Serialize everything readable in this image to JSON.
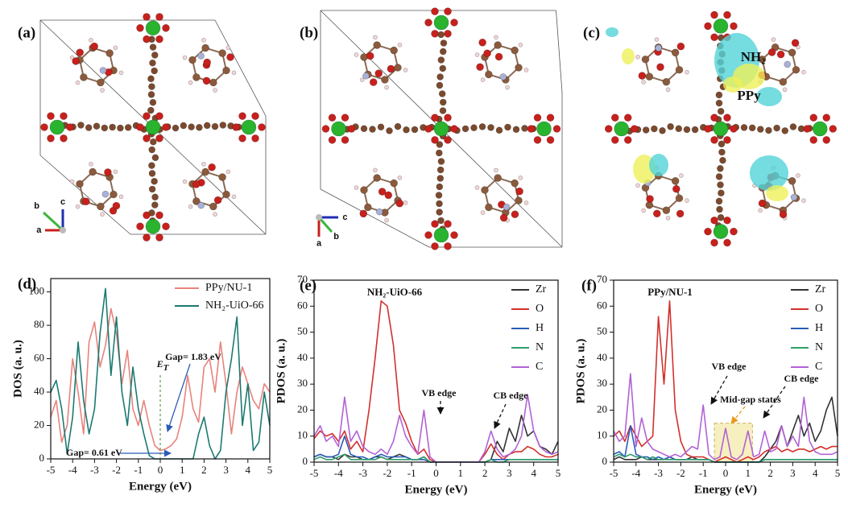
{
  "structures": [
    {
      "label": "(a)",
      "axes": [
        "a",
        "b",
        "c"
      ]
    },
    {
      "label": "(b)",
      "axes": [
        "a",
        "b",
        "c"
      ]
    },
    {
      "label": "(c)",
      "annotations": [
        "NH₂",
        "PPy"
      ]
    }
  ],
  "chart_data": [
    {
      "type": "line",
      "label": "(d)",
      "x_label": "Energy (eV)",
      "y_label": "DOS (a. u.)",
      "xlim": [
        -5,
        5
      ],
      "xticks": [
        -5,
        -4,
        -3,
        -2,
        -1,
        0,
        1,
        2,
        3,
        4,
        5
      ],
      "ylim": [
        0,
        108
      ],
      "yticks": [
        0,
        20,
        40,
        60,
        80,
        100
      ],
      "legend": "top-right",
      "annotations": [
        {
          "text": "E",
          "sub": "T"
        },
        {
          "text": "Gap= 1.83 eV"
        },
        {
          "text": "Gap= 0.61 eV"
        }
      ],
      "x": [
        -5,
        -4.75,
        -4.5,
        -4.25,
        -4,
        -3.75,
        -3.5,
        -3.25,
        -3,
        -2.75,
        -2.5,
        -2.25,
        -2,
        -1.75,
        -1.5,
        -1.25,
        -1,
        -0.75,
        -0.5,
        -0.25,
        0,
        0.25,
        0.5,
        0.75,
        1,
        1.25,
        1.5,
        1.75,
        2,
        2.25,
        2.5,
        2.75,
        3,
        3.25,
        3.5,
        3.75,
        4,
        4.25,
        4.5,
        4.75,
        5
      ],
      "series": [
        {
          "name": "PPy/NU-1",
          "color": "#e8837c",
          "values": [
            25,
            35,
            10,
            20,
            60,
            40,
            15,
            70,
            82,
            55,
            68,
            90,
            75,
            45,
            65,
            30,
            20,
            35,
            20,
            8,
            5,
            6,
            8,
            12,
            25,
            50,
            30,
            22,
            55,
            60,
            40,
            70,
            45,
            15,
            40,
            55,
            45,
            35,
            30,
            45,
            40
          ]
        },
        {
          "name": "NH₂-UiO-66",
          "color": "#1b7a72",
          "values": [
            40,
            47,
            30,
            3,
            25,
            70,
            35,
            15,
            30,
            75,
            102,
            50,
            85,
            40,
            20,
            55,
            30,
            15,
            2,
            0,
            0,
            0,
            0,
            0,
            0,
            0,
            0,
            15,
            25,
            8,
            0,
            5,
            40,
            60,
            85,
            20,
            45,
            5,
            10,
            40,
            20
          ]
        }
      ]
    },
    {
      "type": "line",
      "label": "(e)",
      "title": "NH₂-UiO-66",
      "x_label": "Energy (eV)",
      "y_label": "PDOS (a. u.)",
      "xlim": [
        -5,
        5
      ],
      "xticks": [
        -5,
        -4,
        -3,
        -2,
        -1,
        0,
        1,
        2,
        3,
        4,
        5
      ],
      "ylim": [
        0,
        70
      ],
      "yticks": [
        0,
        10,
        20,
        30,
        40,
        50,
        60,
        70
      ],
      "legend": "top-right",
      "annotations": [
        {
          "text": "VB edge"
        },
        {
          "text": "CB edge"
        }
      ],
      "x": [
        -5,
        -4.75,
        -4.5,
        -4.25,
        -4,
        -3.75,
        -3.5,
        -3.25,
        -3,
        -2.75,
        -2.5,
        -2.25,
        -2,
        -1.75,
        -1.5,
        -1.25,
        -1,
        -0.75,
        -0.5,
        -0.25,
        0,
        0.25,
        0.5,
        0.75,
        1,
        1.25,
        1.5,
        1.75,
        2,
        2.25,
        2.5,
        2.75,
        3,
        3.25,
        3.5,
        3.75,
        4,
        4.25,
        4.5,
        4.75,
        5
      ],
      "series": [
        {
          "name": "Zr",
          "color": "#333333",
          "values": [
            2,
            3,
            2,
            2,
            1,
            3,
            2,
            2,
            1,
            1,
            2,
            2,
            1,
            2,
            3,
            2,
            1,
            1,
            2,
            0,
            0,
            0,
            0,
            0,
            0,
            0,
            0,
            0,
            0,
            1,
            8,
            4,
            13,
            8,
            18,
            10,
            12,
            6,
            5,
            3,
            8
          ]
        },
        {
          "name": "O",
          "color": "#d2302c",
          "values": [
            9,
            12,
            10,
            11,
            8,
            12,
            5,
            8,
            4,
            20,
            40,
            62,
            60,
            45,
            20,
            15,
            8,
            3,
            5,
            1,
            0,
            0,
            0,
            0,
            0,
            0,
            0,
            0,
            3,
            7,
            3,
            1,
            3,
            4,
            4,
            6,
            5,
            3,
            2,
            2,
            3
          ]
        },
        {
          "name": "H",
          "color": "#2a5cb8",
          "values": [
            2,
            3,
            2,
            2,
            3,
            10,
            3,
            2,
            2,
            1,
            2,
            3,
            2,
            2,
            2,
            2,
            1,
            1,
            1,
            0,
            0,
            0,
            0,
            0,
            0,
            0,
            0,
            0,
            0,
            1,
            1,
            1,
            1,
            1,
            1,
            1,
            1,
            1,
            1,
            1,
            1
          ]
        },
        {
          "name": "N",
          "color": "#2e9e6a",
          "values": [
            1,
            2,
            1,
            1,
            2,
            3,
            1,
            1,
            1,
            1,
            1,
            2,
            1,
            1,
            1,
            1,
            1,
            1,
            2,
            0,
            0,
            0,
            0,
            0,
            0,
            0,
            0,
            0,
            0,
            1,
            0,
            0,
            1,
            1,
            1,
            1,
            1,
            1,
            1,
            1,
            1
          ]
        },
        {
          "name": "C",
          "color": "#b262d6",
          "values": [
            10,
            14,
            8,
            10,
            6,
            25,
            8,
            12,
            6,
            4,
            3,
            5,
            3,
            8,
            18,
            10,
            6,
            3,
            20,
            2,
            0,
            0,
            0,
            0,
            0,
            0,
            0,
            0,
            4,
            12,
            5,
            2,
            3,
            5,
            10,
            26,
            12,
            6,
            4,
            3,
            4
          ]
        }
      ]
    },
    {
      "type": "line",
      "label": "(f)",
      "title": "PPy/NU-1",
      "x_label": "Energy (eV)",
      "y_label": "PDOS (a. u.)",
      "xlim": [
        -5,
        5
      ],
      "xticks": [
        -5,
        -4,
        -3,
        -2,
        -1,
        0,
        1,
        2,
        3,
        4,
        5
      ],
      "ylim": [
        0,
        70
      ],
      "yticks": [
        0,
        10,
        20,
        30,
        40,
        50,
        60,
        70
      ],
      "legend": "top-right",
      "annotations": [
        {
          "text": "VB edge"
        },
        {
          "text": "CB edge"
        },
        {
          "text": "Mid-gap states"
        }
      ],
      "highlight": {
        "x": [
          -0.5,
          1.2
        ],
        "y": [
          0,
          15
        ],
        "color": "#f6efc0"
      },
      "x": [
        -5,
        -4.75,
        -4.5,
        -4.25,
        -4,
        -3.75,
        -3.5,
        -3.25,
        -3,
        -2.75,
        -2.5,
        -2.25,
        -2,
        -1.75,
        -1.5,
        -1.25,
        -1,
        -0.75,
        -0.5,
        -0.25,
        0,
        0.25,
        0.5,
        0.75,
        1,
        1.25,
        1.5,
        1.75,
        2,
        2.25,
        2.5,
        2.75,
        3,
        3.25,
        3.5,
        3.75,
        4,
        4.25,
        4.5,
        4.75,
        5
      ],
      "series": [
        {
          "name": "Zr",
          "color": "#333333",
          "values": [
            1,
            2,
            1,
            1,
            1,
            2,
            1,
            1,
            1,
            1,
            2,
            1,
            1,
            1,
            2,
            1,
            1,
            1,
            0,
            0,
            0,
            0,
            0,
            0,
            0,
            0,
            0,
            2,
            5,
            8,
            14,
            6,
            12,
            18,
            10,
            15,
            8,
            12,
            20,
            25,
            10
          ]
        },
        {
          "name": "O",
          "color": "#d2302c",
          "values": [
            10,
            12,
            8,
            14,
            10,
            6,
            8,
            10,
            56,
            30,
            62,
            20,
            8,
            3,
            2,
            2,
            2,
            1,
            0,
            1,
            2,
            1,
            0,
            1,
            2,
            1,
            2,
            4,
            5,
            6,
            4,
            5,
            4,
            5,
            5,
            4,
            5,
            6,
            5,
            6,
            6
          ]
        },
        {
          "name": "H",
          "color": "#2a5cb8",
          "values": [
            3,
            4,
            2,
            14,
            3,
            2,
            2,
            1,
            2,
            1,
            2,
            1,
            1,
            1,
            1,
            1,
            1,
            1,
            0,
            0,
            0,
            0,
            0,
            0,
            0,
            0,
            0,
            1,
            1,
            1,
            1,
            1,
            1,
            1,
            1,
            1,
            1,
            1,
            1,
            1,
            1
          ]
        },
        {
          "name": "N",
          "color": "#2e9e6a",
          "values": [
            2,
            3,
            2,
            3,
            2,
            2,
            1,
            2,
            1,
            1,
            1,
            1,
            1,
            1,
            1,
            1,
            1,
            1,
            0,
            0,
            0,
            0,
            0,
            0,
            0,
            0,
            0,
            1,
            1,
            1,
            1,
            1,
            1,
            1,
            1,
            1,
            1,
            1,
            1,
            1,
            1
          ]
        },
        {
          "name": "C",
          "color": "#b262d6",
          "values": [
            12,
            8,
            10,
            34,
            6,
            17,
            8,
            5,
            4,
            3,
            2,
            3,
            2,
            4,
            6,
            5,
            22,
            3,
            1,
            2,
            13,
            2,
            1,
            3,
            12,
            2,
            3,
            12,
            4,
            5,
            14,
            6,
            10,
            6,
            25,
            8,
            4,
            3,
            3,
            3,
            4
          ]
        }
      ]
    }
  ]
}
